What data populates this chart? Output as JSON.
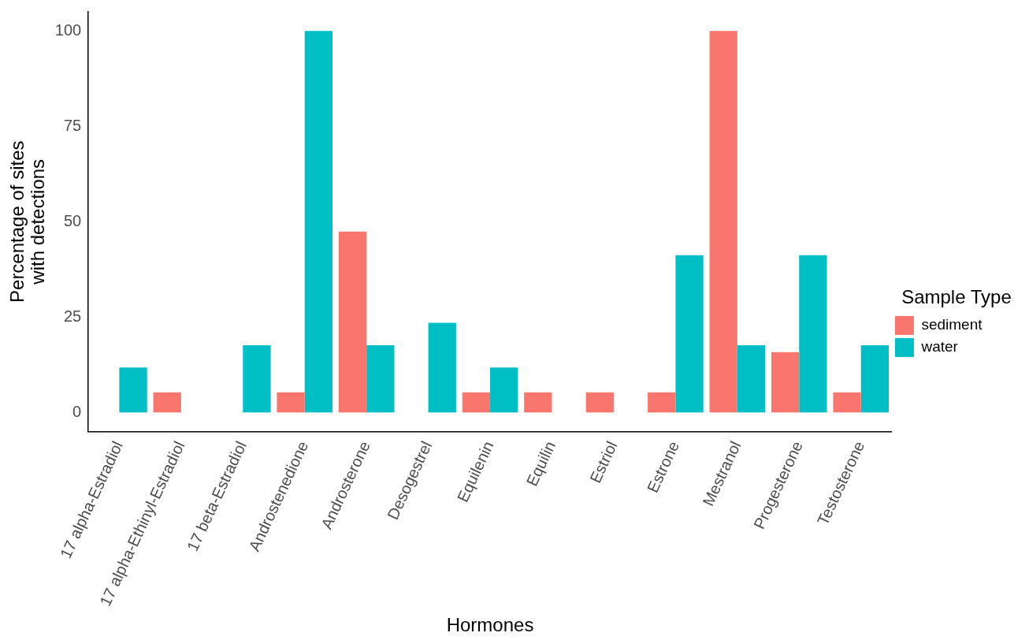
{
  "chart_data": {
    "type": "bar",
    "xlabel": "Hormones",
    "ylabel": "Percentage of sites\nwith detections",
    "legend_title": "Sample Type",
    "legend": "right",
    "categories": [
      "17 alpha-Estradiol",
      "17 alpha-Ethinyl-Estradiol",
      "17 beta-Estradiol",
      "Androstenedione",
      "Androsterone",
      "Desogestrel",
      "Equilenin",
      "Equilin",
      "Estriol",
      "Estrone",
      "Mestranol",
      "Progesterone",
      "Testosterone"
    ],
    "series": [
      {
        "name": "sediment",
        "color": "#f8766d",
        "values": [
          null,
          5.3,
          null,
          5.3,
          47.4,
          null,
          5.3,
          5.3,
          5.3,
          5.3,
          100,
          15.8,
          5.3
        ]
      },
      {
        "name": "water",
        "color": "#00bfc4",
        "values": [
          11.8,
          null,
          17.6,
          100,
          17.6,
          23.5,
          11.8,
          null,
          null,
          41.2,
          17.6,
          41.2,
          17.6
        ]
      }
    ],
    "ylim": [
      -5,
      105
    ],
    "yticks": [
      0,
      25,
      50,
      75,
      100
    ],
    "grid": false
  }
}
